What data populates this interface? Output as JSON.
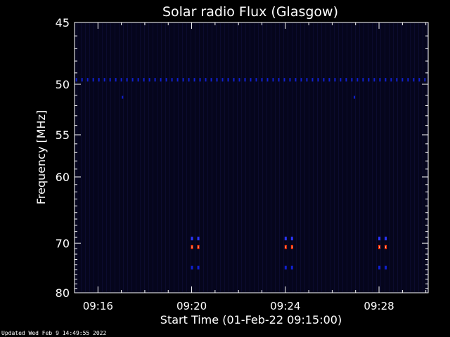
{
  "footer": {
    "updated": "Updated Wed Feb  9 14:49:55 2022"
  },
  "chart_data": {
    "type": "heatmap",
    "title": "Solar radio Flux (Glasgow)",
    "xlabel": "Start Time (01-Feb-22 09:15:00)",
    "ylabel": "Frequency [MHz]",
    "x_unit": "minutes after 09:15",
    "xlim": [
      0,
      15.1
    ],
    "xticks": [
      {
        "value": 1,
        "label": "09:16"
      },
      {
        "value": 5,
        "label": "09:20"
      },
      {
        "value": 9,
        "label": "09:24"
      },
      {
        "value": 13,
        "label": "09:28"
      }
    ],
    "y_scale": "reciprocal",
    "ylim": [
      45,
      80
    ],
    "y_reversed": true,
    "yticks": [
      45,
      50,
      55,
      60,
      70,
      80
    ],
    "grid": false,
    "colors": {
      "background": "#000000",
      "plot_background": "#05051c",
      "low": "#1020d0",
      "mid": "#2a35ff",
      "high": "#ff3000",
      "peak": "#ffd8c0",
      "axis": "#ffffff"
    },
    "features": [
      {
        "name": "interference-line-49.6MHz",
        "freq": 49.6,
        "x_start": 0,
        "x_end": 15.1,
        "step": 0.24,
        "intensity": "low"
      },
      {
        "name": "spot-51.2MHz-a",
        "freq": 51.2,
        "x": 2.05,
        "intensity": "low"
      },
      {
        "name": "spot-51.2MHz-b",
        "freq": 51.2,
        "x": 11.95,
        "intensity": "low"
      },
      {
        "name": "burst-09:20",
        "center_x": 5.15,
        "intensity": "high"
      },
      {
        "name": "burst-09:24",
        "center_x": 9.15,
        "intensity": "high"
      },
      {
        "name": "burst-09:28",
        "center_x": 13.15,
        "intensity": "high"
      }
    ],
    "burst_profile": [
      {
        "freq": 69.2,
        "intensity": "mid"
      },
      {
        "freq": 70.7,
        "intensity": "high"
      },
      {
        "freq": 74.6,
        "intensity": "low"
      }
    ]
  }
}
